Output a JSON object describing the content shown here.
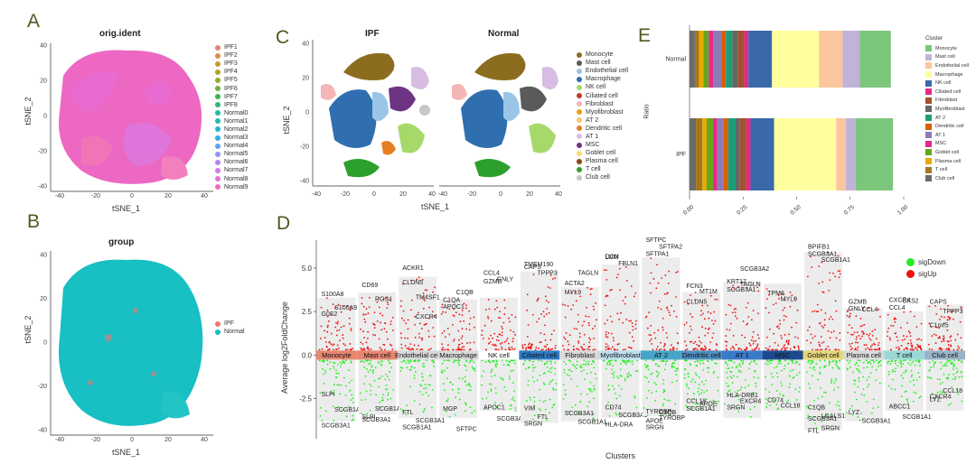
{
  "panels": {
    "A": {
      "letter": "A",
      "title": "orig.ident",
      "xlabel": "tSNE_1",
      "ylabel": "tSNE_2",
      "xticks": [
        "-40",
        "-20",
        "0",
        "20",
        "40"
      ],
      "yticks": [
        "40",
        "20",
        "0",
        "-20",
        "-40"
      ],
      "legend": [
        {
          "label": "IPF1",
          "color": "#e8837a"
        },
        {
          "label": "IPF2",
          "color": "#d9904b"
        },
        {
          "label": "IPF3",
          "color": "#c99b2e"
        },
        {
          "label": "IPF4",
          "color": "#b2a22b"
        },
        {
          "label": "IPF5",
          "color": "#93aa2c"
        },
        {
          "label": "IPF6",
          "color": "#6fb13a"
        },
        {
          "label": "IPF7",
          "color": "#3cb64f"
        },
        {
          "label": "IPF8",
          "color": "#2bb878"
        },
        {
          "label": "Normal0",
          "color": "#22bb9c"
        },
        {
          "label": "Normal1",
          "color": "#1fbab9"
        },
        {
          "label": "Normal2",
          "color": "#20b5d2"
        },
        {
          "label": "Normal3",
          "color": "#2eacea"
        },
        {
          "label": "Normal4",
          "color": "#619ff7"
        },
        {
          "label": "Normal5",
          "color": "#8f93fa"
        },
        {
          "label": "Normal6",
          "color": "#b386f5"
        },
        {
          "label": "Normal7",
          "color": "#d27aea"
        },
        {
          "label": "Normal8",
          "color": "#e970d6"
        },
        {
          "label": "Normal9",
          "color": "#f56bbb"
        }
      ]
    },
    "B": {
      "letter": "B",
      "title": "group",
      "xlabel": "tSNE_1",
      "ylabel": "tSNE_2",
      "xticks": [
        "-40",
        "-20",
        "0",
        "20",
        "40"
      ],
      "yticks": [
        "40",
        "20",
        "0",
        "-20",
        "-40"
      ],
      "legend": [
        {
          "label": "IPF",
          "color": "#f0776f"
        },
        {
          "label": "Normal",
          "color": "#16bfc4"
        }
      ]
    },
    "C": {
      "letter": "C",
      "title_left": "IPF",
      "title_right": "Normal",
      "xlabel": "tSNE_1",
      "ylabel": "tSNE_2",
      "xticks": [
        "-40",
        "-20",
        "0",
        "20",
        "40"
      ],
      "yticks": [
        "40",
        "20",
        "0",
        "-20",
        "-40"
      ],
      "legend": [
        {
          "label": "Monocyte",
          "color": "#8c6d1f"
        },
        {
          "label": "Mast cell",
          "color": "#5a5a5a"
        },
        {
          "label": "Endothelial cell",
          "color": "#9ac5e6"
        },
        {
          "label": "Macrophage",
          "color": "#2f6fb0"
        },
        {
          "label": "NK cell",
          "color": "#a6d96a"
        },
        {
          "label": "Ciliated cell",
          "color": "#c0392b"
        },
        {
          "label": "Fibroblast",
          "color": "#f4b6b6"
        },
        {
          "label": "Myofibroblast",
          "color": "#f39c12"
        },
        {
          "label": "AT 2",
          "color": "#f8c471"
        },
        {
          "label": "Dendritic cell",
          "color": "#e67e22"
        },
        {
          "label": "AT 1",
          "color": "#d7bde2"
        },
        {
          "label": "MSC",
          "color": "#6c3483"
        },
        {
          "label": "Goblet cell",
          "color": "#f7dc6f"
        },
        {
          "label": "Plasma cell",
          "color": "#8b4513"
        },
        {
          "label": "T cell",
          "color": "#2ca02c"
        },
        {
          "label": "Club cell",
          "color": "#c7c7c7"
        }
      ]
    },
    "D": {
      "letter": "D",
      "xlabel": "Clusters",
      "ylabel": "Average log2FoldChange",
      "yticks": [
        "5.0",
        "2.5",
        "0.0",
        "-2.5"
      ],
      "legend": [
        {
          "label": "sigDown",
          "color": "#22ee22"
        },
        {
          "label": "sigUp",
          "color": "#ee1111"
        }
      ]
    },
    "E": {
      "letter": "E",
      "ylabel": "Ratio",
      "row_labels": [
        "Normal",
        "IPF"
      ],
      "xticks": [
        "0.00",
        "0.25",
        "0.50",
        "0.75",
        "1.00"
      ],
      "legend_title": "Cluster"
    }
  },
  "chart_data": [
    {
      "type": "scatter",
      "panel": "D",
      "title": "",
      "xlabel": "Clusters",
      "ylabel": "Average log2FoldChange",
      "ylim": [
        -4.8,
        6.6
      ],
      "categories": [
        "Monocyte",
        "Mast cell",
        "Endothelial cell",
        "Macrophage",
        "NK cell",
        "Ciliated cell",
        "Fibroblast",
        "Myofibroblast",
        "AT 2",
        "Dendritic cell",
        "AT 1",
        "MSC",
        "Goblet cell",
        "Plasma cell",
        "T cell",
        "Club cell"
      ],
      "category_colors": [
        "#e8856f",
        "#e8856f",
        "#d9d9d9",
        "#d9d9d9",
        "#ffffff",
        "#2d7bc4",
        "#d9d9d9",
        "#bde0f0",
        "#46a5c8",
        "#4f8fbf",
        "#3a7bc8",
        "#1d4a8f",
        "#e5d67a",
        "#d9d9d9",
        "#9ad8d8",
        "#9ab3c8"
      ],
      "range_max": [
        3.3,
        3.6,
        4.5,
        3.2,
        3.3,
        4.8,
        3.9,
        5.2,
        5.6,
        3.6,
        4.2,
        4.1,
        5.9,
        2.7,
        2.5,
        2.9
      ],
      "range_min": [
        -3.8,
        -3.4,
        -3.6,
        -3.6,
        -3.2,
        -3.9,
        -3.8,
        -3.6,
        -3.5,
        -3.2,
        -3.6,
        -3.2,
        -4.3,
        -3.8,
        -3.2,
        -3.2
      ],
      "labels_up": [
        [
          {
            "t": "S100A8",
            "y": 3.4
          },
          {
            "t": "S100A9",
            "y": 2.6
          },
          {
            "t": "G0S2",
            "y": 2.25
          }
        ],
        [
          {
            "t": "CD69",
            "y": 3.9
          },
          {
            "t": "RGS1",
            "y": 3.1
          }
        ],
        [
          {
            "t": "CLDN5",
            "y": 4.05
          },
          {
            "t": "TM4SF1",
            "y": 3.2
          },
          {
            "t": "ACKR1",
            "y": 4.9
          },
          {
            "t": "CXCR4",
            "y": 2.1
          }
        ],
        [
          {
            "t": "C1QA",
            "y": 3.05
          },
          {
            "t": "C1QB",
            "y": 3.5
          },
          {
            "t": "APOC1",
            "y": 2.65
          }
        ],
        [
          {
            "t": "CCL4",
            "y": 4.6
          },
          {
            "t": "GNLY",
            "y": 4.25
          },
          {
            "t": "GZMB",
            "y": 4.1
          }
        ],
        [
          {
            "t": "TMEM190",
            "y": 5.1
          },
          {
            "t": "TPPP3",
            "y": 4.6
          },
          {
            "t": "CAPS",
            "y": 4.95
          }
        ],
        [
          {
            "t": "ACTA2",
            "y": 4.0
          },
          {
            "t": "TAGLN",
            "y": 4.6
          },
          {
            "t": "MYL9",
            "y": 3.5
          }
        ],
        [
          {
            "t": "DCN",
            "y": 5.55
          },
          {
            "t": "FBLN1",
            "y": 5.15
          },
          {
            "t": "LUM",
            "y": 5.5
          }
        ],
        [
          {
            "t": "SFTPC",
            "y": 6.5
          },
          {
            "t": "SFTPA2",
            "y": 6.1
          },
          {
            "t": "SFTPA1",
            "y": 5.7
          }
        ],
        [
          {
            "t": "FCN3",
            "y": 3.85
          },
          {
            "t": "MT1M",
            "y": 3.55
          },
          {
            "t": "CLDN5",
            "y": 2.95
          }
        ],
        [
          {
            "t": "KRT17",
            "y": 4.1
          },
          {
            "t": "SCGB3A2",
            "y": 4.85
          },
          {
            "t": "SCGB3A1",
            "y": 3.65
          },
          {
            "t": "TAGLN",
            "y": 3.95
          }
        ],
        [
          {
            "t": "TPM2",
            "y": 3.45
          },
          {
            "t": "MYL9",
            "y": 3.1
          }
        ],
        [
          {
            "t": "BPIFB1",
            "y": 6.1
          },
          {
            "t": "SCGB1A1",
            "y": 5.35
          },
          {
            "t": "SCGB3A1",
            "y": 5.7
          }
        ],
        [
          {
            "t": "GZMB",
            "y": 2.95
          },
          {
            "t": "CCL4",
            "y": 2.5
          },
          {
            "t": "GNLY",
            "y": 2.55
          }
        ],
        [
          {
            "t": "CXCR4",
            "y": 3.05
          },
          {
            "t": "CKS2",
            "y": 3.0
          },
          {
            "t": "CCL4",
            "y": 2.6
          }
        ],
        [
          {
            "t": "CAPS",
            "y": 2.95
          },
          {
            "t": "TPPP3",
            "y": 2.4
          },
          {
            "t": "C1orf5",
            "y": 1.6
          }
        ]
      ],
      "labels_down": [
        [
          {
            "t": "SLPI",
            "y": -2.2
          },
          {
            "t": "SCGB1A1",
            "y": -3.1
          },
          {
            "t": "SCGB3A1",
            "y": -4.0
          }
        ],
        [
          {
            "t": "SLPI",
            "y": -3.5
          },
          {
            "t": "SCGB1A1",
            "y": -3.05
          },
          {
            "t": "SCGB3A1",
            "y": -3.65
          }
        ],
        [
          {
            "t": "FTL",
            "y": -3.25
          },
          {
            "t": "SCGB3A1",
            "y": -3.7
          },
          {
            "t": "SCGB1A1",
            "y": -4.1
          }
        ],
        [
          {
            "t": "MGP",
            "y": -3.05
          },
          {
            "t": "SFTPC",
            "y": -4.2
          }
        ],
        [
          {
            "t": "APOC1",
            "y": -2.95
          },
          {
            "t": "SCGB3A1",
            "y": -3.6
          }
        ],
        [
          {
            "t": "VIM",
            "y": -3.0
          },
          {
            "t": "FTL",
            "y": -3.5
          },
          {
            "t": "SRGN",
            "y": -3.9
          }
        ],
        [
          {
            "t": "SCGB3A1",
            "y": -3.3
          },
          {
            "t": "SCGB1A1",
            "y": -3.8
          }
        ],
        [
          {
            "t": "CD74",
            "y": -2.95
          },
          {
            "t": "SCGB3A1",
            "y": -3.4
          },
          {
            "t": "HLA-DRA",
            "y": -3.95
          }
        ],
        [
          {
            "t": "TYROBP",
            "y": -3.2
          },
          {
            "t": "TYROBP",
            "y": -3.55
          },
          {
            "t": "APOE",
            "y": -3.75
          },
          {
            "t": "C1QB",
            "y": -3.25
          },
          {
            "t": "SRGN",
            "y": -4.1
          }
        ],
        [
          {
            "t": "CCL18",
            "y": -2.6
          },
          {
            "t": "APOE",
            "y": -2.75
          },
          {
            "t": "SCGB1A1",
            "y": -3.05
          }
        ],
        [
          {
            "t": "HLA-DRB1",
            "y": -2.25
          },
          {
            "t": "EXCR4",
            "y": -2.6
          },
          {
            "t": "SRGN",
            "y": -2.95
          }
        ],
        [
          {
            "t": "CD74",
            "y": -2.55
          },
          {
            "t": "CCL18",
            "y": -2.85
          }
        ],
        [
          {
            "t": "C1QB",
            "y": -2.95
          },
          {
            "t": "LGALS1",
            "y": -3.45
          },
          {
            "t": "FTL",
            "y": -4.3
          },
          {
            "t": "SRGN",
            "y": -4.15
          },
          {
            "t": "SCGB3A1",
            "y": -3.6
          }
        ],
        [
          {
            "t": "LYZ",
            "y": -3.25
          },
          {
            "t": "SCGB3A1",
            "y": -3.75
          }
        ],
        [
          {
            "t": "ABCC1",
            "y": -2.9
          },
          {
            "t": "SCGB1A1",
            "y": -3.5
          }
        ],
        [
          {
            "t": "CXCR4",
            "y": -2.35
          },
          {
            "t": "CCL18",
            "y": -2.0
          },
          {
            "t": "LYZ",
            "y": -2.5
          }
        ]
      ]
    },
    {
      "type": "bar",
      "panel": "E",
      "orientation": "horizontal-stacked",
      "title": "",
      "xlabel": "",
      "ylabel": "Ratio",
      "categories": [
        "Normal",
        "IPF"
      ],
      "xlim": [
        0,
        1
      ],
      "series": [
        {
          "name": "Monocyte",
          "color": "#7bc67b",
          "values": [
            0.145,
            0.175
          ]
        },
        {
          "name": "Mast cell",
          "color": "#bfb3d9",
          "values": [
            0.08,
            0.045
          ]
        },
        {
          "name": "Endothelial cell",
          "color": "#fbc59d",
          "values": [
            0.11,
            0.045
          ]
        },
        {
          "name": "Macrophage",
          "color": "#fefe9e",
          "values": [
            0.22,
            0.29
          ]
        },
        {
          "name": "NK cell",
          "color": "#3b68a8",
          "values": [
            0.11,
            0.11
          ]
        },
        {
          "name": "Ciliated cell",
          "color": "#e32a8a",
          "values": [
            0.02,
            0.02
          ]
        },
        {
          "name": "Fibroblast",
          "color": "#a0522d",
          "values": [
            0.03,
            0.03
          ]
        },
        {
          "name": "Myofibroblast",
          "color": "#666666",
          "values": [
            0.025,
            0.02
          ]
        },
        {
          "name": "AT 2",
          "color": "#1b9e77",
          "values": [
            0.03,
            0.035
          ]
        },
        {
          "name": "Dendritic cell",
          "color": "#d95f02",
          "values": [
            0.02,
            0.02
          ]
        },
        {
          "name": "AT 1",
          "color": "#8d7bb8",
          "values": [
            0.04,
            0.03
          ]
        },
        {
          "name": "MSC",
          "color": "#e7298a",
          "values": [
            0.02,
            0.02
          ]
        },
        {
          "name": "Goblet cell",
          "color": "#66a61e",
          "values": [
            0.025,
            0.03
          ]
        },
        {
          "name": "Plasma cell",
          "color": "#e6ab02",
          "values": [
            0.02,
            0.02
          ]
        },
        {
          "name": "T cell",
          "color": "#a6761d",
          "values": [
            0.02,
            0.03
          ]
        },
        {
          "name": "Club cell",
          "color": "#6b6b6b",
          "values": [
            0.025,
            0.03
          ]
        }
      ]
    }
  ]
}
